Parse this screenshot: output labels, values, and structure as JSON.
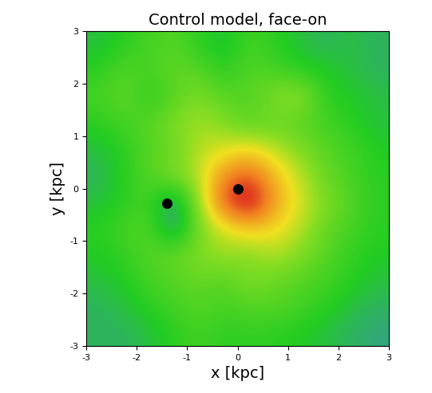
{
  "chart_data": {
    "type": "heatmap",
    "title": "Control model, face-on",
    "x_label": "x [kpc]",
    "y_label": "y [kpc]",
    "xlim": [
      -3,
      3
    ],
    "ylim": [
      -3,
      3
    ],
    "xticks": [
      -3,
      -2,
      -1,
      0,
      1,
      2,
      3
    ],
    "yticks": [
      -3,
      -2,
      -1,
      0,
      1,
      2,
      3
    ],
    "color_range": [
      0.2,
      1.0
    ],
    "cells": [
      [
        0.42,
        0.45,
        0.48,
        0.5,
        0.45,
        0.42,
        0.48,
        0.45,
        0.42,
        0.4,
        0.42,
        0.4
      ],
      [
        0.45,
        0.5,
        0.48,
        0.52,
        0.5,
        0.45,
        0.5,
        0.48,
        0.45,
        0.44,
        0.42,
        0.4
      ],
      [
        0.48,
        0.52,
        0.45,
        0.5,
        0.55,
        0.5,
        0.5,
        0.55,
        0.58,
        0.45,
        0.44,
        0.42
      ],
      [
        0.45,
        0.48,
        0.5,
        0.55,
        0.58,
        0.55,
        0.5,
        0.52,
        0.5,
        0.48,
        0.45,
        0.42
      ],
      [
        0.42,
        0.45,
        0.5,
        0.52,
        0.6,
        0.62,
        0.65,
        0.6,
        0.55,
        0.5,
        0.48,
        0.44
      ],
      [
        0.4,
        0.45,
        0.5,
        0.55,
        0.6,
        0.75,
        0.8,
        0.68,
        0.6,
        0.52,
        0.48,
        0.45
      ],
      [
        0.42,
        0.45,
        0.48,
        0.35,
        0.58,
        0.82,
        0.9,
        0.72,
        0.62,
        0.55,
        0.5,
        0.45
      ],
      [
        0.45,
        0.48,
        0.5,
        0.35,
        0.55,
        0.62,
        0.68,
        0.65,
        0.6,
        0.52,
        0.48,
        0.45
      ],
      [
        0.44,
        0.46,
        0.5,
        0.52,
        0.55,
        0.58,
        0.55,
        0.6,
        0.55,
        0.5,
        0.46,
        0.44
      ],
      [
        0.42,
        0.44,
        0.48,
        0.5,
        0.52,
        0.5,
        0.55,
        0.52,
        0.5,
        0.48,
        0.45,
        0.42
      ],
      [
        0.4,
        0.42,
        0.45,
        0.48,
        0.5,
        0.48,
        0.5,
        0.5,
        0.48,
        0.45,
        0.42,
        0.4
      ],
      [
        0.4,
        0.4,
        0.42,
        0.45,
        0.48,
        0.45,
        0.46,
        0.45,
        0.44,
        0.42,
        0.4,
        0.38
      ]
    ],
    "points": {
      "x": [
        0,
        -1.4
      ],
      "y": [
        0,
        -0.28
      ],
      "color": "#000000",
      "marker": "circle"
    }
  }
}
